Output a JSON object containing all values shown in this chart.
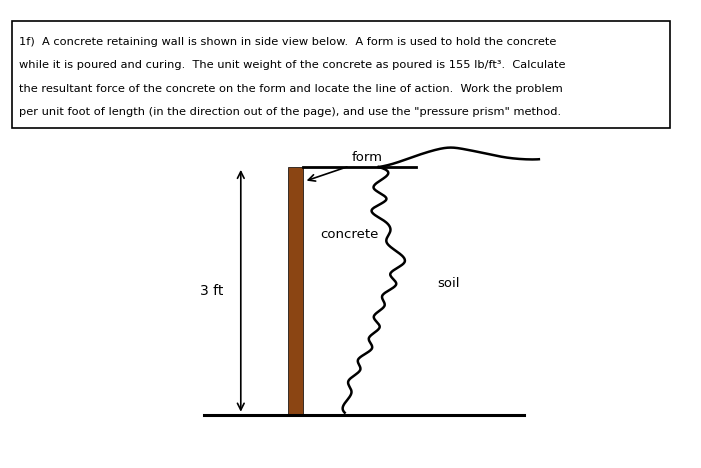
{
  "title_box_text_lines": [
    "1f)  A concrete retaining wall is shown in side view below.  A form is used to hold the concrete",
    "while it is poured and curing.  The unit weight of the concrete as poured is 155 lb/ft³.  Calculate",
    "the resultant force of the concrete on the form and locate the line of action.  Work the problem",
    "per unit foot of length (in the direction out of the page), and use the \"pressure prism\" method."
  ],
  "label_form": "form",
  "label_concrete": "concrete",
  "label_soil": "soil",
  "label_3ft": "3 ft",
  "form_color": "#8B4513",
  "background_color": "#ffffff",
  "fig_width": 7.01,
  "fig_height": 4.68,
  "dpi": 100
}
